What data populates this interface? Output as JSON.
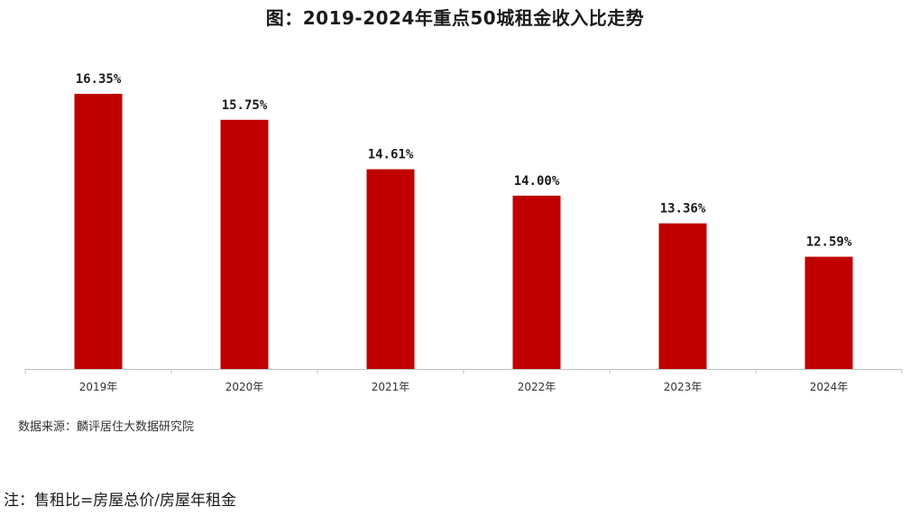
{
  "chart_data": {
    "type": "bar",
    "title": "图：2019-2024年重点50城租金收入比走势",
    "categories": [
      "2019年",
      "2020年",
      "2021年",
      "2022年",
      "2023年",
      "2024年"
    ],
    "values": [
      16.35,
      15.75,
      14.61,
      14.0,
      13.36,
      12.59
    ],
    "data_labels": [
      "16.35%",
      "15.75%",
      "14.61%",
      "14.00%",
      "13.36%",
      "12.59%"
    ],
    "ylim": [
      10,
      17
    ],
    "grid": false,
    "legend": "none",
    "bar_color": "#c00000",
    "axis_color": "#bfbfbf"
  },
  "source": "数据来源：麟评居住大数据研究院",
  "footnote": "注：售租比=房屋总价/房屋年租金"
}
